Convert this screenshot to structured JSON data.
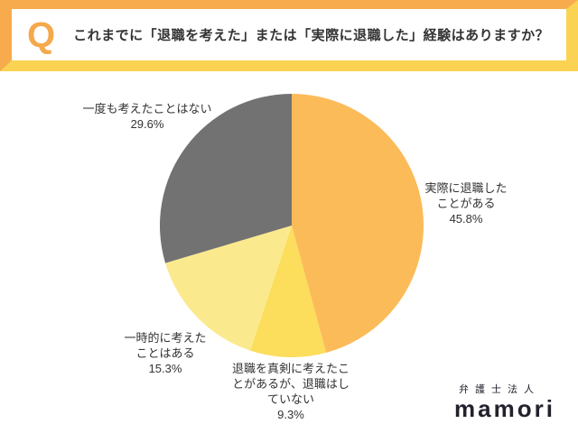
{
  "header": {
    "q_label": "Q",
    "question": "これまでに「退職を考えた」または「実際に退職した」経験はありますか？"
  },
  "chart_data": {
    "type": "pie",
    "title": "これまでに「退職を考えた」または「実際に退職した」経験はありますか？",
    "start_angle_deg": 0,
    "direction": "clockwise",
    "segments": [
      {
        "label": "実際に退職したことがある",
        "value": 45.8,
        "color": "#FCBB59"
      },
      {
        "label": "退職を真剣に考えたことがあるが、退職はしていない",
        "value": 9.3,
        "color": "#FCDD5C"
      },
      {
        "label": "一時的に考えたことはある",
        "value": 15.3,
        "color": "#FBE98E"
      },
      {
        "label": "一度も考えたことはない",
        "value": 29.6,
        "color": "#727272"
      }
    ]
  },
  "labels": {
    "never": "一度も考えたことはない\n29.6%",
    "actual": "実際に退職した\nことがある\n45.8%",
    "temporary": "一時的に考えた\nことはある\n15.3%",
    "serious": "退職を真剣に考えたこ\nとがあるが、退職はし\nていない\n9.3%"
  },
  "logo": {
    "firm_type": "弁護士法人",
    "name": "mamori"
  },
  "colors": {
    "frame_orange": "#F7AB4D",
    "frame_yellow": "#FBD352",
    "q_orange": "#F5A94C",
    "text": "#333333",
    "logo_text": "#22222C"
  }
}
